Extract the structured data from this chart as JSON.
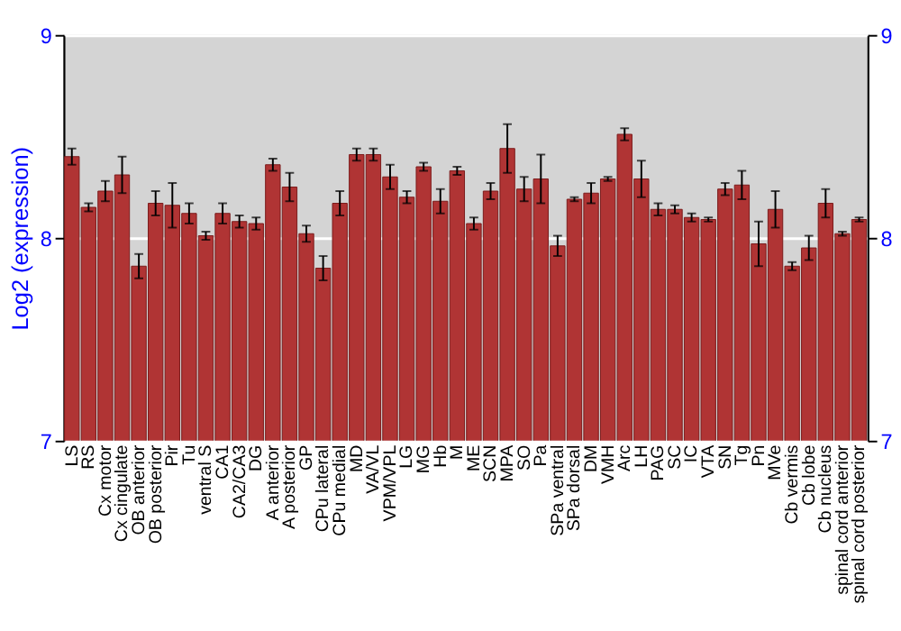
{
  "chart_data": {
    "type": "bar",
    "ylabel": "Log2 (expression)",
    "categories": [
      "LS",
      "RS",
      "Cx motor",
      "Cx cingulate",
      "OB anterior",
      "OB posterior",
      "Pir",
      "Tu",
      "ventral S",
      "CA1",
      "CA2/CA3",
      "DG",
      "A anterior",
      "A posterior",
      "GP",
      "CPu lateral",
      "CPu medial",
      "MD",
      "VA/VL",
      "VPM/VPL",
      "LG",
      "MG",
      "Hb",
      "M",
      "ME",
      "SCN",
      "MPA",
      "SO",
      "Pa",
      "SPa ventral",
      "SPa dorsal",
      "DM",
      "VMH",
      "Arc",
      "LH",
      "PAG",
      "SC",
      "IC",
      "VTA",
      "SN",
      "Tg",
      "Pn",
      "MVe",
      "Cb vermis",
      "Cb lobe",
      "Cb nucleus",
      "spinal cord anterior",
      "spinal cord posterior"
    ],
    "values": [
      8.4,
      8.15,
      8.23,
      8.31,
      7.86,
      8.17,
      8.16,
      8.12,
      8.01,
      8.12,
      8.08,
      8.07,
      8.36,
      8.25,
      8.02,
      7.85,
      8.17,
      8.41,
      8.41,
      8.3,
      8.2,
      8.35,
      8.18,
      8.33,
      8.07,
      8.23,
      8.44,
      8.24,
      8.29,
      7.96,
      8.19,
      8.22,
      8.29,
      8.51,
      8.29,
      8.14,
      8.14,
      8.1,
      8.09,
      8.24,
      8.26,
      7.97,
      8.14,
      7.86,
      7.95,
      8.17,
      8.02,
      8.09
    ],
    "errors": [
      0.04,
      0.02,
      0.05,
      0.09,
      0.06,
      0.06,
      0.11,
      0.05,
      0.02,
      0.05,
      0.03,
      0.03,
      0.03,
      0.07,
      0.04,
      0.06,
      0.06,
      0.03,
      0.03,
      0.06,
      0.03,
      0.02,
      0.06,
      0.02,
      0.03,
      0.04,
      0.12,
      0.06,
      0.12,
      0.05,
      0.01,
      0.05,
      0.01,
      0.03,
      0.09,
      0.03,
      0.02,
      0.02,
      0.01,
      0.03,
      0.07,
      0.11,
      0.09,
      0.02,
      0.06,
      0.07,
      0.01,
      0.01
    ],
    "color": "#b03434",
    "ylim": [
      7,
      9
    ],
    "yticks": [
      7,
      8,
      9
    ],
    "y2lim": [
      7,
      9
    ],
    "y2ticks": [
      7,
      8,
      9
    ],
    "grid": "y"
  }
}
